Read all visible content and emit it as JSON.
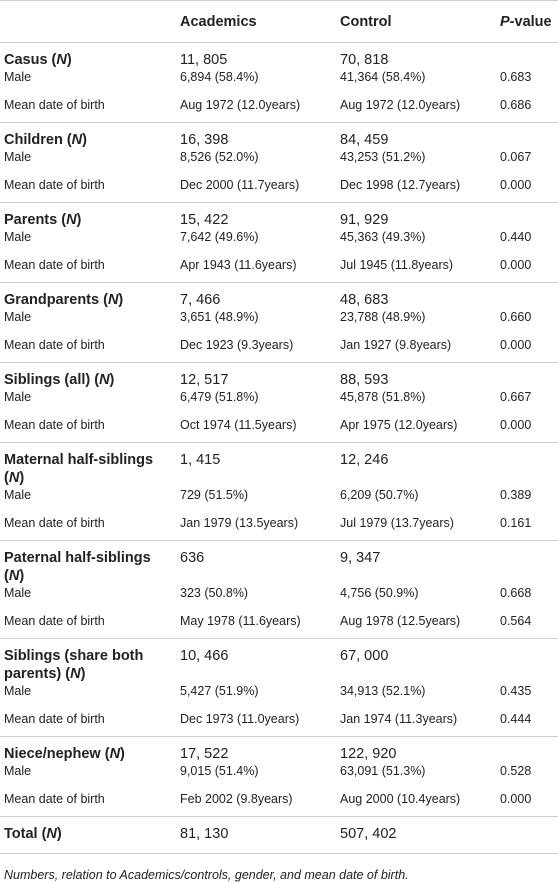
{
  "table": {
    "header": [
      [
        {
          "text": "Academics"
        }
      ],
      [
        {
          "text": "Control"
        }
      ],
      [
        {
          "text": "P",
          "italic": true
        },
        {
          "text": "-value"
        }
      ]
    ],
    "groups": [
      {
        "label": [
          {
            "text": "Casus ("
          },
          {
            "text": "N",
            "italic": true
          },
          {
            "text": ")"
          }
        ],
        "values": [
          "11, 805",
          "70, 818"
        ],
        "rows": [
          [
            "Male",
            "6,894 (58.4%)",
            "41,364 (58.4%)",
            "0.683"
          ],
          [
            "Mean date of birth",
            "Aug 1972 (12.0years)",
            "Aug 1972 (12.0years)",
            "0.686"
          ]
        ]
      },
      {
        "label": [
          {
            "text": "Children ("
          },
          {
            "text": "N",
            "italic": true
          },
          {
            "text": ")"
          }
        ],
        "values": [
          "16, 398",
          "84, 459"
        ],
        "rows": [
          [
            "Male",
            "8,526 (52.0%)",
            "43,253 (51.2%)",
            "0.067"
          ],
          [
            "Mean date of birth",
            "Dec 2000 (11.7years)",
            "Dec 1998 (12.7years)",
            "0.000"
          ]
        ]
      },
      {
        "label": [
          {
            "text": "Parents ("
          },
          {
            "text": "N",
            "italic": true
          },
          {
            "text": ")"
          }
        ],
        "values": [
          "15, 422",
          "91, 929"
        ],
        "rows": [
          [
            "Male",
            "7,642 (49.6%)",
            "45,363 (49.3%)",
            "0.440"
          ],
          [
            "Mean date of birth",
            "Apr 1943 (11.6years)",
            "Jul 1945 (11.8years)",
            "0.000"
          ]
        ]
      },
      {
        "label": [
          {
            "text": "Grandparents ("
          },
          {
            "text": "N",
            "italic": true
          },
          {
            "text": ")"
          }
        ],
        "values": [
          "7, 466",
          "48, 683"
        ],
        "rows": [
          [
            "Male",
            "3,651 (48.9%)",
            "23,788 (48.9%)",
            "0.660"
          ],
          [
            "Mean date of birth",
            "Dec 1923 (9.3years)",
            "Jan 1927 (9.8years)",
            "0.000"
          ]
        ]
      },
      {
        "label": [
          {
            "text": "Siblings (all) ("
          },
          {
            "text": "N",
            "italic": true
          },
          {
            "text": ")"
          }
        ],
        "values": [
          "12, 517",
          "88, 593"
        ],
        "rows": [
          [
            "Male",
            "6,479 (51.8%)",
            "45,878 (51.8%)",
            "0.667"
          ],
          [
            "Mean date of birth",
            "Oct 1974 (11.5years)",
            "Apr 1975 (12.0years)",
            "0.000"
          ]
        ]
      },
      {
        "label": [
          {
            "text": "Maternal half-siblings ("
          },
          {
            "text": "N",
            "italic": true
          },
          {
            "text": ")"
          }
        ],
        "values": [
          "1, 415",
          "12, 246"
        ],
        "rows": [
          [
            "Male",
            "729 (51.5%)",
            "6,209 (50.7%)",
            "0.389"
          ],
          [
            "Mean date of birth",
            "Jan 1979 (13.5years)",
            "Jul 1979 (13.7years)",
            "0.161"
          ]
        ]
      },
      {
        "label": [
          {
            "text": "Paternal half-siblings ("
          },
          {
            "text": "N",
            "italic": true
          },
          {
            "text": ")"
          }
        ],
        "values": [
          "636",
          "9, 347"
        ],
        "rows": [
          [
            "Male",
            "323 (50.8%)",
            "4,756 (50.9%)",
            "0.668"
          ],
          [
            "Mean date of birth",
            "May 1978 (11.6years)",
            "Aug 1978 (12.5years)",
            "0.564"
          ]
        ]
      },
      {
        "label": [
          {
            "text": "Siblings (share both parents) ("
          },
          {
            "text": "N",
            "italic": true
          },
          {
            "text": ")"
          }
        ],
        "values": [
          "10, 466",
          "67, 000"
        ],
        "rows": [
          [
            "Male",
            "5,427 (51.9%)",
            "34,913 (52.1%)",
            "0.435"
          ],
          [
            "Mean date of birth",
            "Dec 1973 (11.0years)",
            "Jan 1974 (11.3years)",
            "0.444"
          ]
        ]
      },
      {
        "label": [
          {
            "text": "Niece/nephew ("
          },
          {
            "text": "N",
            "italic": true
          },
          {
            "text": ")"
          }
        ],
        "values": [
          "17, 522",
          "122, 920"
        ],
        "rows": [
          [
            "Male",
            "9,015 (51.4%)",
            "63,091 (51.3%)",
            "0.528"
          ],
          [
            "Mean date of birth",
            "Feb 2002 (9.8years)",
            "Aug 2000 (10.4years)",
            "0.000"
          ]
        ]
      }
    ],
    "total": {
      "label": [
        {
          "text": "Total ("
        },
        {
          "text": "N",
          "italic": true
        },
        {
          "text": ")"
        }
      ],
      "values": [
        "81, 130",
        "507, 402"
      ]
    }
  },
  "caption": "Numbers, relation to Academics/controls, gender, and mean date of birth."
}
